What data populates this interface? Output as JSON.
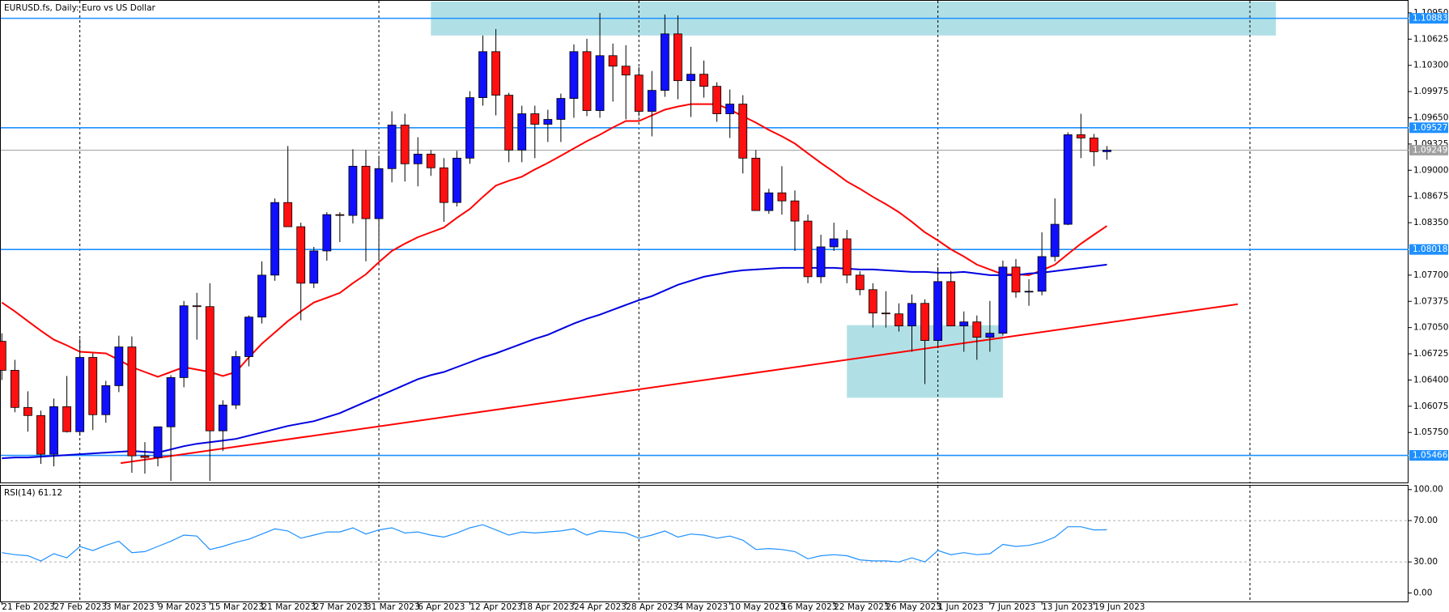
{
  "chart_data": {
    "type": "candlestick",
    "title": "EURUSD.fs, Daily: Euro vs US Dollar",
    "categories": [
      "21 Feb 2023",
      null,
      null,
      null,
      "27 Feb 2023",
      null,
      null,
      null,
      "3 Mar 2023",
      null,
      null,
      null,
      "9 Mar 2023",
      null,
      null,
      null,
      "15 Mar 2023",
      null,
      null,
      null,
      "21 Mar 2023",
      null,
      null,
      null,
      "27 Mar 2023",
      null,
      null,
      null,
      "31 Mar 2023",
      null,
      null,
      null,
      "6 Apr 2023",
      null,
      null,
      null,
      "12 Apr 2023",
      null,
      null,
      null,
      "18 Apr 2023",
      null,
      null,
      null,
      "24 Apr 2023",
      null,
      null,
      null,
      "28 Apr 2023",
      null,
      null,
      null,
      "4 May 2023",
      null,
      null,
      null,
      "10 May 2023",
      null,
      null,
      null,
      "16 May 2023",
      null,
      null,
      null,
      "22 May 2023",
      null,
      null,
      null,
      "26 May 2023",
      null,
      null,
      null,
      "1 Jun 2023",
      null,
      null,
      null,
      "7 Jun 2023",
      null,
      null,
      null,
      "13 Jun 2023",
      null,
      null,
      null,
      "19 Jun 2023",
      null
    ],
    "open": [
      1.0688,
      1.0652,
      1.0606,
      1.0596,
      1.0548,
      1.0607,
      1.0576,
      1.0668,
      1.0597,
      1.0633,
      1.0681,
      1.0546,
      1.0544,
      1.0582,
      1.0643,
      1.0732,
      1.0731,
      1.0577,
      1.0609,
      1.0669,
      1.0718,
      1.077,
      1.086,
      1.083,
      1.076,
      1.08,
      1.0845,
      1.0844,
      1.0905,
      1.084,
      1.0902,
      1.0956,
      1.0908,
      1.092,
      1.0903,
      1.086,
      1.0915,
      1.099,
      1.1047,
      1.0993,
      1.0925,
      1.097,
      1.0957,
      1.0963,
      1.0989,
      1.1047,
      1.0974,
      1.1042,
      1.1029,
      1.1018,
      1.0973,
      1.0999,
      1.1069,
      1.1011,
      1.1019,
      1.1004,
      1.097,
      1.0982,
      1.0915,
      1.085,
      1.0872,
      1.0862,
      1.0837,
      1.0768,
      1.0805,
      1.0815,
      1.077,
      1.0752,
      1.0723,
      1.0722,
      1.0707,
      1.0735,
      1.0689,
      1.0762,
      1.0707,
      1.0712,
      1.0693,
      1.0698,
      1.078,
      1.0749,
      1.075,
      1.0793,
      1.0833,
      1.0944,
      1.094,
      1.0923
    ],
    "high": [
      1.0698,
      1.0665,
      1.0626,
      1.0602,
      1.0617,
      1.0645,
      1.0691,
      1.0673,
      1.0639,
      1.0695,
      1.0694,
      1.0563,
      1.0581,
      1.0646,
      1.0738,
      1.0748,
      1.076,
      1.0615,
      1.0676,
      1.072,
      1.0787,
      1.0865,
      1.093,
      1.0835,
      1.0805,
      1.0848,
      1.0848,
      1.0926,
      1.0925,
      1.0918,
      1.0973,
      1.097,
      1.0941,
      1.0925,
      1.0915,
      1.0924,
      1.0998,
      1.1067,
      1.1075,
      1.0996,
      1.098,
      1.098,
      1.0975,
      1.0995,
      1.1056,
      1.1063,
      1.1095,
      1.1057,
      1.1055,
      1.1028,
      1.1023,
      1.1093,
      1.1092,
      1.1053,
      1.1036,
      1.1009,
      1.1,
      1.0993,
      1.0925,
      1.0877,
      1.0905,
      1.0875,
      1.0845,
      1.082,
      1.0835,
      1.0826,
      1.0775,
      1.076,
      1.075,
      1.0735,
      1.0746,
      1.074,
      1.078,
      1.0775,
      1.0725,
      1.072,
      1.0738,
      1.0788,
      1.079,
      1.0765,
      1.0823,
      1.0865,
      1.0947,
      1.097,
      1.0945,
      1.093
    ],
    "low": [
      1.064,
      1.06,
      1.0576,
      1.0536,
      1.0533,
      1.0575,
      1.0571,
      1.0578,
      1.0587,
      1.0625,
      1.0525,
      1.0524,
      1.0533,
      1.0515,
      1.0631,
      1.069,
      1.0515,
      1.0552,
      1.0604,
      1.0657,
      1.071,
      1.0763,
      1.083,
      1.0714,
      1.0754,
      1.0788,
      1.0811,
      1.0834,
      1.0787,
      1.0788,
      1.0885,
      1.0886,
      1.088,
      1.0893,
      1.0836,
      1.0855,
      1.0908,
      1.098,
      1.0968,
      1.091,
      1.091,
      1.0915,
      1.0935,
      1.0935,
      1.0965,
      1.0967,
      1.0965,
      1.0985,
      1.0963,
      1.0967,
      1.0942,
      1.0991,
      1.0988,
      1.0966,
      1.099,
      1.096,
      1.094,
      1.0896,
      1.085,
      1.0846,
      1.0845,
      1.08,
      1.076,
      1.076,
      1.08,
      1.076,
      1.0745,
      1.0705,
      1.0705,
      1.07,
      1.0675,
      1.0635,
      1.068,
      1.0707,
      1.0675,
      1.0665,
      1.0675,
      1.0695,
      1.0742,
      1.0732,
      1.0745,
      1.0787,
      1.0832,
      1.0915,
      1.0905,
      1.0913
    ],
    "close": [
      1.0652,
      1.0606,
      1.0596,
      1.0548,
      1.0607,
      1.0576,
      1.0668,
      1.0597,
      1.0633,
      1.0681,
      1.0546,
      1.0544,
      1.0582,
      1.0643,
      1.0732,
      1.0731,
      1.0577,
      1.0609,
      1.0669,
      1.0718,
      1.077,
      1.086,
      1.083,
      1.076,
      1.08,
      1.0845,
      1.0844,
      1.0905,
      1.084,
      1.0902,
      1.0956,
      1.0908,
      1.092,
      1.0903,
      1.086,
      1.0915,
      1.099,
      1.1047,
      1.0993,
      1.0925,
      1.097,
      1.0957,
      1.0963,
      1.0989,
      1.1047,
      1.0974,
      1.1042,
      1.1029,
      1.1018,
      1.0973,
      1.0999,
      1.1069,
      1.1011,
      1.1019,
      1.1004,
      1.097,
      1.0982,
      1.0915,
      1.085,
      1.0872,
      1.0862,
      1.0837,
      1.0768,
      1.0805,
      1.0815,
      1.077,
      1.0752,
      1.0723,
      1.0722,
      1.0707,
      1.0735,
      1.0689,
      1.0762,
      1.0707,
      1.0712,
      1.0693,
      1.0698,
      1.078,
      1.0749,
      1.075,
      1.0793,
      1.0833,
      1.0944,
      1.094,
      1.0923,
      1.0925
    ],
    "up_color": "#1010ff",
    "down_color": "#ff1010",
    "ylim": [
      1.0512,
      1.1111
    ],
    "yticks": [
      {
        "value": 1.1095,
        "label": "1.10950"
      },
      {
        "value": 1.10625,
        "label": "1.10625"
      },
      {
        "value": 1.103,
        "label": "1.10300"
      },
      {
        "value": 1.09975,
        "label": "1.09975"
      },
      {
        "value": 1.0965,
        "label": "1.09650"
      },
      {
        "value": 1.09325,
        "label": "1.09325"
      },
      {
        "value": 1.09,
        "label": "1.09000"
      },
      {
        "value": 1.08675,
        "label": "1.08675"
      },
      {
        "value": 1.0835,
        "label": "1.08350"
      },
      {
        "value": 1.077,
        "label": "1.07700"
      },
      {
        "value": 1.07375,
        "label": "1.07375"
      },
      {
        "value": 1.0705,
        "label": "1.07050"
      },
      {
        "value": 1.06725,
        "label": "1.06725"
      },
      {
        "value": 1.064,
        "label": "1.06400"
      },
      {
        "value": 1.06075,
        "label": "1.06075"
      },
      {
        "value": 1.0575,
        "label": "1.05750"
      }
    ],
    "moving_averages": [
      {
        "color": "#ff0000",
        "values": [
          1.0736,
          1.0725,
          1.0713,
          1.0701,
          1.069,
          1.0683,
          1.0675,
          1.0674,
          1.0673,
          1.0665,
          1.0656,
          1.065,
          1.0644,
          1.065,
          1.0656,
          1.0653,
          1.065,
          1.0645,
          1.065,
          1.0668,
          1.0685,
          1.0699,
          1.0713,
          1.0725,
          1.0736,
          1.0742,
          1.0748,
          1.076,
          1.0771,
          1.0786,
          1.08,
          1.0809,
          1.0817,
          1.0823,
          1.0829,
          1.0841,
          1.0852,
          1.0867,
          1.0881,
          1.0887,
          1.0892,
          1.0901,
          1.0909,
          1.0918,
          1.0927,
          1.0936,
          1.0944,
          1.0953,
          1.0961,
          1.0961,
          1.0968,
          1.0975,
          1.0979,
          1.0982,
          1.0982,
          1.0982,
          1.0975,
          1.0967,
          1.0959,
          1.095,
          1.0942,
          1.0933,
          1.0921,
          1.0909,
          1.0898,
          1.0886,
          1.0877,
          1.0867,
          1.0858,
          1.0848,
          1.0836,
          1.0823,
          1.0813,
          1.0802,
          1.0793,
          1.0783,
          1.0777,
          1.0771,
          1.0771,
          1.077,
          1.0776,
          1.0783,
          1.0796,
          1.0809,
          1.082,
          1.0831
        ]
      },
      {
        "color": "#0000e0",
        "values": [
          1.0543,
          1.0544,
          1.0544,
          1.0545,
          1.0546,
          1.0547,
          1.0548,
          1.0549,
          1.055,
          1.0551,
          1.0552,
          1.0551,
          1.055,
          1.0554,
          1.0558,
          1.0561,
          1.0563,
          1.0565,
          1.0567,
          1.0571,
          1.0575,
          1.0579,
          1.0583,
          1.0586,
          1.0589,
          1.0594,
          1.0599,
          1.0606,
          1.0613,
          1.062,
          1.0627,
          1.0634,
          1.0641,
          1.0646,
          1.065,
          1.0656,
          1.0662,
          1.0668,
          1.0673,
          1.0679,
          1.0685,
          1.0691,
          1.0696,
          1.0703,
          1.071,
          1.0716,
          1.0721,
          1.0727,
          1.0733,
          1.0739,
          1.0744,
          1.0751,
          1.0758,
          1.0763,
          1.0768,
          1.0771,
          1.0774,
          1.0776,
          1.0777,
          1.0778,
          1.0779,
          1.0779,
          1.0779,
          1.0779,
          1.0779,
          1.0778,
          1.0777,
          1.0777,
          1.0776,
          1.0775,
          1.0774,
          1.0774,
          1.0773,
          1.0773,
          1.0774,
          1.0772,
          1.077,
          1.077,
          1.077,
          1.0772,
          1.0773,
          1.0775,
          1.0777,
          1.0779,
          1.0781,
          1.0783
        ]
      }
    ],
    "levels": [
      {
        "value": 1.10883,
        "label": "1.10883",
        "color": "#1e90ff"
      },
      {
        "value": 1.09527,
        "label": "1.09527",
        "color": "#1e90ff"
      },
      {
        "value": 1.08018,
        "label": "1.08018",
        "color": "#1e90ff"
      },
      {
        "value": 1.05466,
        "label": "1.05466",
        "color": "#1e90ff"
      }
    ],
    "current_price": {
      "value": 1.09249,
      "label": "1.09249",
      "color": "#a0a0a0"
    },
    "trendline": {
      "from": [
        9.14,
        1.0537
      ],
      "to": [
        95.07,
        1.0734
      ],
      "color": "#ff0000"
    },
    "zones": [
      {
        "x": [
          33,
          98
        ],
        "y": [
          1.1067,
          1.1109
        ],
        "color": "#b0e0e6"
      },
      {
        "x": [
          65,
          77
        ],
        "y": [
          1.0618,
          1.0708
        ],
        "color": "#b0e0e6"
      }
    ],
    "month_separators": [
      6,
      29,
      49,
      72,
      96
    ],
    "indicator": {
      "type": "line",
      "title": "RSI(14) 61.12",
      "color": "#1e90ff",
      "values": [
        39,
        37,
        36,
        31,
        38,
        34,
        45,
        41,
        46,
        50,
        39,
        40,
        45,
        50,
        56,
        55,
        42,
        45,
        49,
        52,
        57,
        62,
        60,
        53,
        56,
        59,
        59,
        63,
        57,
        61,
        63,
        58,
        59,
        56,
        54,
        58,
        63,
        66,
        61,
        56,
        59,
        58,
        59,
        60,
        62,
        56,
        60,
        59,
        58,
        53,
        56,
        60,
        54,
        57,
        56,
        53,
        55,
        51,
        42,
        43,
        42,
        40,
        33,
        36,
        37,
        36,
        32,
        31,
        31,
        30,
        34,
        30,
        41,
        37,
        39,
        37,
        38,
        47,
        45,
        46,
        49,
        54,
        64,
        64,
        61,
        61.12
      ],
      "ylim": [
        -9,
        104.5
      ],
      "yticks": [
        {
          "value": 100,
          "label": "100.00"
        },
        {
          "value": 70,
          "label": "70.00"
        },
        {
          "value": 30,
          "label": "30.00"
        },
        {
          "value": 0,
          "label": "0.00"
        }
      ],
      "levels": [
        70,
        30
      ]
    }
  }
}
